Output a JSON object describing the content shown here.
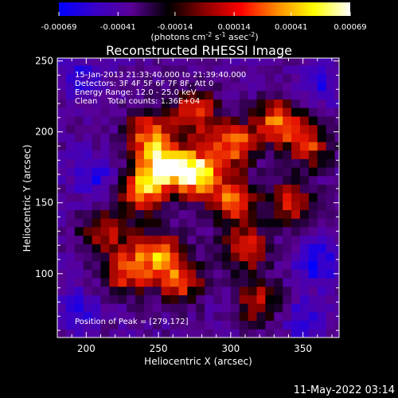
{
  "chart_data": {
    "type": "heatmap",
    "title": "Reconstructed RHESSI Image",
    "xlabel": "Heliocentric X (arcsec)",
    "ylabel": "Heliocentric Y (arcsec)",
    "xlim": [
      180,
      375
    ],
    "ylim": [
      55,
      252
    ],
    "x_ticks": [
      "200",
      "250",
      "300",
      "350"
    ],
    "y_ticks": [
      "100",
      "150",
      "200",
      "250"
    ],
    "colorbar": {
      "range": [
        -0.00069,
        0.00069
      ],
      "tick_values": [
        -0.00069,
        -0.00041,
        -0.00014,
        0.00014,
        0.00041,
        0.00069
      ],
      "tick_labels": [
        "-0.00069",
        "-0.00041",
        "-0.00014",
        "0.00014",
        "0.00041",
        "0.00069"
      ],
      "unit_parts": [
        "(photons cm",
        "-2",
        " s",
        "-1",
        " asec",
        "-2",
        ")"
      ],
      "colors": [
        "#0000ff",
        "#3a00c8",
        "#5a0096",
        "#000000",
        "#8b0000",
        "#ff0000",
        "#ff8c00",
        "#ffff00",
        "#ffffff"
      ]
    },
    "info_lines": [
      "15-Jan-2013 21:33:40.000 to 21:39:40.000",
      "Detectors: 3F 4F 5F 6F 7F 8F, Att 0",
      "Energy Range: 12.0 - 25.0 keV",
      "Clean    Total counts: 1.36E+04"
    ],
    "peak_label": "Position of Peak = [279,172]",
    "peak_position": [
      279,
      172
    ],
    "emission_sources": [
      {
        "x": 275,
        "y": 171,
        "intensity": 0.00069
      },
      {
        "x": 252,
        "y": 178,
        "intensity": 0.00052
      },
      {
        "x": 238,
        "y": 158,
        "intensity": 0.00042
      },
      {
        "x": 302,
        "y": 192,
        "intensity": 0.0004
      },
      {
        "x": 300,
        "y": 152,
        "intensity": 0.00038
      },
      {
        "x": 333,
        "y": 207,
        "intensity": 0.0004
      },
      {
        "x": 275,
        "y": 214,
        "intensity": 0.00033
      },
      {
        "x": 242,
        "y": 200,
        "intensity": 0.00028
      },
      {
        "x": 250,
        "y": 115,
        "intensity": 0.00036
      },
      {
        "x": 228,
        "y": 102,
        "intensity": 0.00034
      },
      {
        "x": 265,
        "y": 95,
        "intensity": 0.0003
      },
      {
        "x": 310,
        "y": 118,
        "intensity": 0.00028
      },
      {
        "x": 212,
        "y": 130,
        "intensity": 0.00022
      },
      {
        "x": 340,
        "y": 150,
        "intensity": 0.00024
      },
      {
        "x": 320,
        "y": 80,
        "intensity": 0.0002
      },
      {
        "x": 355,
        "y": 190,
        "intensity": 0.00024
      },
      {
        "x": 205,
        "y": 168,
        "intensity": -0.00034
      },
      {
        "x": 360,
        "y": 108,
        "intensity": -0.0004
      },
      {
        "x": 195,
        "y": 240,
        "intensity": -0.0003
      },
      {
        "x": 362,
        "y": 236,
        "intensity": -0.00032
      },
      {
        "x": 350,
        "y": 68,
        "intensity": -0.0003
      },
      {
        "x": 195,
        "y": 75,
        "intensity": -0.00026
      }
    ]
  },
  "footer_timestamp": "11-May-2022 03:14"
}
